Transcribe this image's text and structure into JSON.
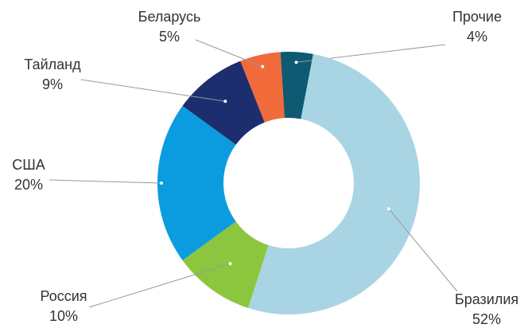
{
  "chart_data": {
    "type": "donut",
    "categories": [
      "Прочие",
      "Бразилия",
      "Россия",
      "США",
      "Тайланд",
      "Беларусь"
    ],
    "values": [
      4,
      52,
      10,
      20,
      9,
      5
    ],
    "value_labels": [
      "4%",
      "52%",
      "10%",
      "20%",
      "9%",
      "5%"
    ],
    "colors": [
      "#0d5a72",
      "#a9d4e4",
      "#8cc63f",
      "#0b9ce0",
      "#1c2e6e",
      "#f06a3a"
    ]
  }
}
